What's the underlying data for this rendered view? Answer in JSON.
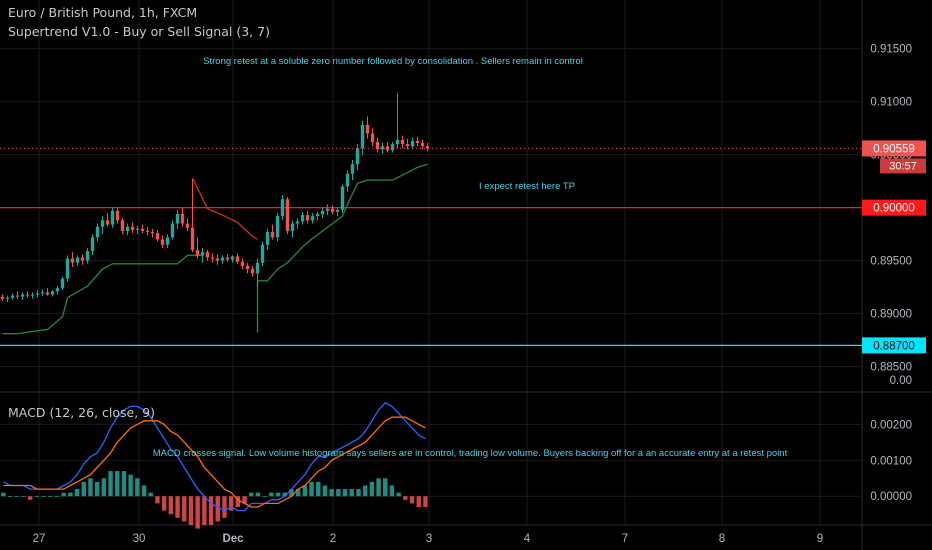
{
  "header": {
    "symbol_line": "Euro / British Pound, 1h, FXCM",
    "indicator_line": "Supertrend V1.0 - Buy or Sell Signal (3, 7)",
    "macd_line": "MACD (12, 26, close, 9)"
  },
  "colors": {
    "background": "#000000",
    "grid": "#1b1b1b",
    "bull": "#26a69a",
    "bear": "#ef5350",
    "supertrend_up": "#2e7d32",
    "supertrend_down": "#c62828",
    "macd": "#2962ff",
    "signal": "#ff6d00",
    "resistance": "#ff1a1a",
    "support": "#00e5ff",
    "annotation": "#4dd0e1",
    "axis_text": "#b2b5be"
  },
  "chart_data": [
    {
      "type": "candlestick",
      "title": "Euro / British Pound, 1h, FXCM",
      "x_ticks": [
        "27",
        "30",
        "Dec",
        "2",
        "3",
        "4",
        "7",
        "8",
        "9"
      ],
      "ylim": [
        0.8826,
        0.9196
      ],
      "y_ticks": [
        "0.91500",
        "0.91000",
        "0.90500",
        "0.90000",
        "0.89500",
        "0.89000",
        "0.88500"
      ],
      "current_price": "0.90559",
      "countdown": "30:57",
      "annotations": [
        "Strong retest at a soluble zero number followed by consolidation . Sellers remain in control",
        "I expect retest here TP"
      ],
      "levels": [
        {
          "value": 0.9,
          "label": "0.90000",
          "role": "resistance"
        },
        {
          "value": 0.887,
          "label": "0.88700",
          "role": "support"
        }
      ],
      "candles": [
        [
          0.8916,
          0.8918,
          0.8912,
          0.8914
        ],
        [
          0.8914,
          0.8917,
          0.8911,
          0.8915
        ],
        [
          0.8915,
          0.8919,
          0.8913,
          0.8917
        ],
        [
          0.8917,
          0.8921,
          0.8914,
          0.8916
        ],
        [
          0.8916,
          0.892,
          0.8913,
          0.8918
        ],
        [
          0.8918,
          0.8921,
          0.8915,
          0.8917
        ],
        [
          0.8917,
          0.892,
          0.8914,
          0.8918
        ],
        [
          0.8918,
          0.8922,
          0.8915,
          0.8919
        ],
        [
          0.8919,
          0.8923,
          0.8917,
          0.892
        ],
        [
          0.892,
          0.8924,
          0.8917,
          0.8918
        ],
        [
          0.8918,
          0.8922,
          0.8916,
          0.8921
        ],
        [
          0.8921,
          0.8926,
          0.8918,
          0.8924
        ],
        [
          0.8924,
          0.8935,
          0.8922,
          0.8933
        ],
        [
          0.8933,
          0.8955,
          0.893,
          0.8952
        ],
        [
          0.8952,
          0.8958,
          0.8944,
          0.8948
        ],
        [
          0.8948,
          0.8955,
          0.8945,
          0.8953
        ],
        [
          0.8953,
          0.8956,
          0.8946,
          0.895
        ],
        [
          0.895,
          0.8962,
          0.8947,
          0.8959
        ],
        [
          0.8959,
          0.8975,
          0.8955,
          0.8972
        ],
        [
          0.8972,
          0.8985,
          0.8968,
          0.8982
        ],
        [
          0.8982,
          0.8992,
          0.8975,
          0.8988
        ],
        [
          0.8988,
          0.8995,
          0.8982,
          0.8984
        ],
        [
          0.8984,
          0.9,
          0.8981,
          0.8997
        ],
        [
          0.8997,
          0.9,
          0.8985,
          0.8988
        ],
        [
          0.8988,
          0.899,
          0.8975,
          0.8978
        ],
        [
          0.8978,
          0.8985,
          0.8974,
          0.8982
        ],
        [
          0.8982,
          0.8986,
          0.8976,
          0.8979
        ],
        [
          0.8979,
          0.8983,
          0.8975,
          0.898
        ],
        [
          0.898,
          0.8984,
          0.8976,
          0.8978
        ],
        [
          0.8978,
          0.8982,
          0.8974,
          0.8977
        ],
        [
          0.8977,
          0.898,
          0.8972,
          0.8976
        ],
        [
          0.8976,
          0.8979,
          0.8968,
          0.897
        ],
        [
          0.897,
          0.8974,
          0.8962,
          0.8965
        ],
        [
          0.8965,
          0.8975,
          0.8962,
          0.8972
        ],
        [
          0.8972,
          0.8988,
          0.897,
          0.8985
        ],
        [
          0.8985,
          0.8998,
          0.898,
          0.8994
        ],
        [
          0.8994,
          0.9,
          0.8982,
          0.8985
        ],
        [
          0.8985,
          0.899,
          0.8978,
          0.8981
        ],
        [
          0.8981,
          0.9027,
          0.8958,
          0.896
        ],
        [
          0.896,
          0.8972,
          0.8952,
          0.8955
        ],
        [
          0.8955,
          0.8962,
          0.8948,
          0.8958
        ],
        [
          0.8958,
          0.896,
          0.895,
          0.8953
        ],
        [
          0.8953,
          0.8957,
          0.8948,
          0.8952
        ],
        [
          0.8952,
          0.8956,
          0.8946,
          0.895
        ],
        [
          0.895,
          0.8955,
          0.8947,
          0.8953
        ],
        [
          0.8953,
          0.8956,
          0.8949,
          0.8951
        ],
        [
          0.8951,
          0.8955,
          0.8948,
          0.8954
        ],
        [
          0.8954,
          0.8957,
          0.8947,
          0.8949
        ],
        [
          0.8949,
          0.8952,
          0.8942,
          0.8945
        ],
        [
          0.8945,
          0.8948,
          0.8938,
          0.8942
        ],
        [
          0.8942,
          0.8945,
          0.8935,
          0.8938
        ],
        [
          0.8938,
          0.8952,
          0.8925,
          0.8948
        ],
        [
          0.8948,
          0.8968,
          0.8945,
          0.8965
        ],
        [
          0.8965,
          0.898,
          0.896,
          0.8977
        ],
        [
          0.8977,
          0.8984,
          0.897,
          0.8972
        ],
        [
          0.8972,
          0.8995,
          0.8968,
          0.8992
        ],
        [
          0.8992,
          0.9012,
          0.8988,
          0.9008
        ],
        [
          0.9008,
          0.901,
          0.8975,
          0.8978
        ],
        [
          0.8978,
          0.8988,
          0.8972,
          0.8985
        ],
        [
          0.8985,
          0.899,
          0.898,
          0.8987
        ],
        [
          0.8987,
          0.8996,
          0.8984,
          0.8993
        ],
        [
          0.8993,
          0.8997,
          0.8985,
          0.8988
        ],
        [
          0.8988,
          0.8995,
          0.8985,
          0.8992
        ],
        [
          0.8992,
          0.8996,
          0.8988,
          0.8994
        ],
        [
          0.8994,
          0.9,
          0.899,
          0.8997
        ],
        [
          0.8997,
          0.9003,
          0.8993,
          0.8999
        ],
        [
          0.8999,
          0.9002,
          0.8994,
          0.8996
        ],
        [
          0.8996,
          0.9,
          0.8992,
          0.8998
        ],
        [
          0.8998,
          0.9022,
          0.8995,
          0.902
        ],
        [
          0.902,
          0.9035,
          0.9015,
          0.9032
        ],
        [
          0.9032,
          0.9045,
          0.9026,
          0.9041
        ],
        [
          0.9041,
          0.906,
          0.9035,
          0.9056
        ],
        [
          0.9056,
          0.9082,
          0.905,
          0.9078
        ],
        [
          0.9078,
          0.9086,
          0.9065,
          0.907
        ],
        [
          0.907,
          0.9075,
          0.9058,
          0.9062
        ],
        [
          0.9062,
          0.9066,
          0.9052,
          0.9055
        ],
        [
          0.9055,
          0.9061,
          0.9051,
          0.9058
        ],
        [
          0.9058,
          0.9062,
          0.9052,
          0.9054
        ],
        [
          0.9054,
          0.9062,
          0.9052,
          0.906
        ],
        [
          0.906,
          0.9108,
          0.9056,
          0.9064
        ],
        [
          0.9064,
          0.9068,
          0.9056,
          0.906
        ],
        [
          0.906,
          0.9065,
          0.9055,
          0.9058
        ],
        [
          0.9058,
          0.9066,
          0.9055,
          0.9063
        ],
        [
          0.9063,
          0.9067,
          0.9058,
          0.9061
        ],
        [
          0.9061,
          0.9064,
          0.9055,
          0.9058
        ],
        [
          0.9058,
          0.9061,
          0.9053,
          0.9056
        ]
      ],
      "supertrend": [
        {
          "dir": "up",
          "points": [
            [
              0,
              0.8881
            ],
            [
              3,
              0.8881
            ],
            [
              9,
              0.8885
            ],
            [
              12,
              0.8897
            ],
            [
              13,
              0.8915
            ],
            [
              17,
              0.8926
            ],
            [
              20,
              0.8942
            ],
            [
              22,
              0.8947
            ],
            [
              35,
              0.8947
            ],
            [
              37,
              0.8955
            ],
            [
              40,
              0.8955
            ]
          ]
        },
        {
          "dir": "down",
          "points": [
            [
              38,
              0.9028
            ],
            [
              41,
              0.8999
            ],
            [
              44,
              0.8993
            ],
            [
              47,
              0.8986
            ],
            [
              50,
              0.8973
            ],
            [
              51,
              0.897
            ]
          ]
        },
        {
          "dir": "up",
          "points": [
            [
              51,
              0.8882
            ],
            [
              51,
              0.8931
            ],
            [
              53,
              0.8931
            ],
            [
              55,
              0.8942
            ],
            [
              57,
              0.8948
            ],
            [
              60,
              0.8963
            ],
            [
              62,
              0.8971
            ],
            [
              66,
              0.8985
            ],
            [
              68,
              0.8992
            ],
            [
              69,
              0.9003
            ],
            [
              71,
              0.9023
            ],
            [
              73,
              0.9026
            ],
            [
              78,
              0.9026
            ],
            [
              83,
              0.9038
            ],
            [
              85,
              0.9041
            ]
          ]
        }
      ]
    },
    {
      "type": "line",
      "title": "MACD (12, 26, close, 9)",
      "ylim": [
        -0.0008,
        0.0029
      ],
      "y_ticks": [
        "0.00200",
        "0.00100",
        "0.00000"
      ],
      "annotation": "MACD  crosses signal. Low volume histogram says sellers are in control, trading low volume. Buyers backing off for a an accurate entry at a retest point",
      "series": [
        {
          "role": "macd",
          "values": [
            0.0004,
            0.0003,
            0.0003,
            0.0003,
            0.0002,
            0.0002,
            0.0002,
            0.0002,
            0.0002,
            0.0003,
            0.0004,
            0.0006,
            0.0009,
            0.0011,
            0.0012,
            0.0015,
            0.0019,
            0.0022,
            0.0024,
            0.0025,
            0.0025,
            0.0024,
            0.0022,
            0.0019,
            0.0016,
            0.0013,
            0.0011,
            0.0008,
            0.0005,
            0.0002,
            0.0,
            -0.0002,
            -0.0003,
            -0.0004,
            -0.0003,
            -0.0004,
            -0.0004,
            -0.0002,
            -0.0002,
            -0.0002,
            -0.0001,
            -0.0001,
            0.0,
            0.0002,
            0.0004,
            0.0006,
            0.0009,
            0.0011,
            0.0011,
            0.0012,
            0.0013,
            0.0014,
            0.0015,
            0.0016,
            0.0018,
            0.0021,
            0.0024,
            0.0026,
            0.0025,
            0.0023,
            0.0021,
            0.0019,
            0.0017,
            0.0016
          ]
        },
        {
          "role": "signal",
          "values": [
            0.0003,
            0.0003,
            0.0003,
            0.0003,
            0.0003,
            0.0002,
            0.0002,
            0.0002,
            0.0002,
            0.0002,
            0.0003,
            0.0004,
            0.0005,
            0.0006,
            0.0008,
            0.001,
            0.0012,
            0.0015,
            0.0017,
            0.0019,
            0.002,
            0.0021,
            0.0021,
            0.0021,
            0.002,
            0.0018,
            0.0017,
            0.0015,
            0.0013,
            0.0011,
            0.0008,
            0.0006,
            0.0004,
            0.0002,
            0.0001,
            -0.0001,
            -0.0002,
            -0.0003,
            -0.0003,
            -0.0002,
            -0.0002,
            -0.0002,
            -0.0001,
            0.0,
            0.0002,
            0.0003,
            0.0005,
            0.0007,
            0.0008,
            0.001,
            0.0011,
            0.0012,
            0.0013,
            0.0014,
            0.0015,
            0.0017,
            0.0019,
            0.0021,
            0.0022,
            0.0022,
            0.0022,
            0.0021,
            0.002,
            0.0019
          ]
        },
        {
          "role": "histogram",
          "values": [
            0.0001,
            0.0,
            0.0,
            0.0,
            -0.0001,
            0.0,
            0.0,
            0.0,
            0.0,
            0.0001,
            0.0001,
            0.0002,
            0.0004,
            0.0005,
            0.0004,
            0.0005,
            0.0007,
            0.0007,
            0.0007,
            0.0006,
            0.0005,
            0.0003,
            0.0001,
            -0.0002,
            -0.0004,
            -0.0005,
            -0.0006,
            -0.0007,
            -0.0008,
            -0.0009,
            -0.0008,
            -0.0008,
            -0.0007,
            -0.0006,
            -0.0004,
            -0.0003,
            -0.0002,
            0.0001,
            0.0001,
            0.0,
            0.0001,
            0.0001,
            0.0001,
            0.0002,
            0.0002,
            0.0003,
            0.0004,
            0.0004,
            0.0003,
            0.0002,
            0.0002,
            0.0002,
            0.0002,
            0.0002,
            0.0003,
            0.0004,
            0.0005,
            0.0005,
            0.0003,
            0.0001,
            -0.0001,
            -0.0002,
            -0.0003,
            -0.0003
          ]
        }
      ]
    }
  ]
}
